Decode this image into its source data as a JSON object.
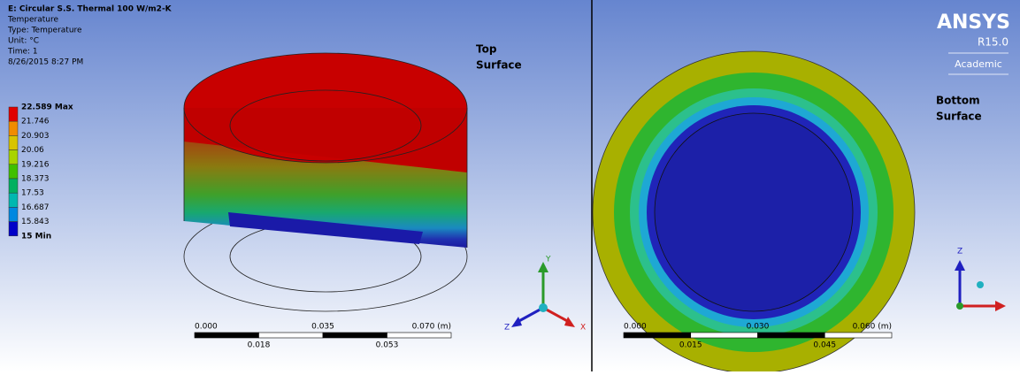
{
  "header": {
    "title": "E: Circular S.S. Thermal 100 W/m2-K",
    "lines": [
      "Temperature",
      "Type: Temperature",
      "Unit: °C",
      "Time: 1",
      "8/26/2015 8:27 PM"
    ]
  },
  "legend": {
    "labels": [
      "22.589 Max",
      "21.746",
      "20.903",
      "20.06",
      "19.216",
      "18.373",
      "17.53",
      "16.687",
      "15.843",
      "15 Min"
    ]
  },
  "left_view": {
    "annotation": [
      "Top",
      "Surface"
    ],
    "axes": [
      "Y",
      "Z",
      "X"
    ],
    "scale": {
      "top_labels": [
        "0.000",
        "0.035",
        "0.070 (m)"
      ],
      "bottom_labels": [
        "0.018",
        "0.053"
      ]
    }
  },
  "right_view": {
    "annotation": [
      "Bottom",
      "Surface"
    ],
    "axes": [
      "Z"
    ],
    "scale": {
      "top_labels": [
        "0.000",
        "0.030",
        "0.060 (m)"
      ],
      "bottom_labels": [
        "0.015",
        "0.045"
      ]
    }
  },
  "logo": {
    "brand": "ANSYS",
    "version": "R15.0",
    "edition": "Academic"
  }
}
